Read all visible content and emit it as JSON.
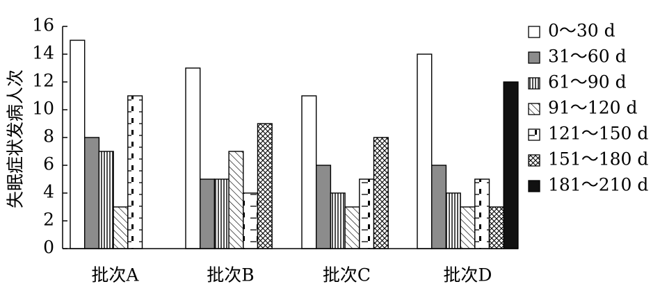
{
  "chart_data": {
    "type": "bar",
    "ylabel": "失眠症状发病人次",
    "xlabel": "",
    "ylim": [
      0,
      16
    ],
    "yticks": [
      0,
      2,
      4,
      6,
      8,
      10,
      12,
      14,
      16
    ],
    "grid": false,
    "legend_position": "right",
    "categories": [
      "批次A",
      "批次B",
      "批次C",
      "批次D"
    ],
    "series": [
      {
        "name": "0～30 d",
        "pattern": "white",
        "values": [
          15,
          13,
          11,
          14
        ]
      },
      {
        "name": "31～60 d",
        "pattern": "gray",
        "values": [
          8,
          5,
          6,
          6
        ]
      },
      {
        "name": "61～90 d",
        "pattern": "vertical",
        "values": [
          7,
          5,
          4,
          4
        ]
      },
      {
        "name": "91～120 d",
        "pattern": "diagonal",
        "values": [
          3,
          7,
          3,
          3
        ]
      },
      {
        "name": "121～150 d",
        "pattern": "dash-dot",
        "values": [
          11,
          4,
          5,
          5
        ]
      },
      {
        "name": "151～180 d",
        "pattern": "crosshatch",
        "values": [
          null,
          9,
          8,
          3
        ]
      },
      {
        "name": "181～210 d",
        "pattern": "black",
        "values": [
          null,
          null,
          null,
          12
        ]
      }
    ]
  }
}
